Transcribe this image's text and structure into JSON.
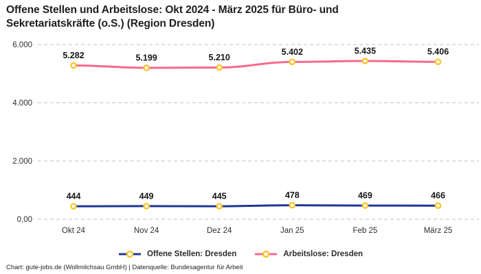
{
  "title": "Offene Stellen und Arbeitslose: Okt 2024 - März 2025 für Büro- und Sekretariatskräfte (o.S.) (Region Dresden)",
  "footer": "Chart: gute-jobs.de (Wollmilchsau GmbH) | Datenquelle: Bundesagentur für Arbeit",
  "chart_data": {
    "type": "line",
    "categories": [
      "Okt 24",
      "Nov 24",
      "Dez 24",
      "Jan 25",
      "Feb 25",
      "März 25"
    ],
    "series": [
      {
        "name": "Offene Stellen: Dresden",
        "values": [
          444,
          449,
          445,
          478,
          469,
          466
        ],
        "labels": [
          "444",
          "449",
          "445",
          "478",
          "469",
          "466"
        ],
        "color": "#1F3795"
      },
      {
        "name": "Arbeitslose: Dresden",
        "values": [
          5282,
          5199,
          5210,
          5402,
          5435,
          5406
        ],
        "labels": [
          "5.282",
          "5.199",
          "5.210",
          "5.402",
          "5.435",
          "5.406"
        ],
        "color": "#F6698C"
      }
    ],
    "y_ticks": [
      {
        "value": 0,
        "label": "0,00"
      },
      {
        "value": 2000,
        "label": "2.000"
      },
      {
        "value": 4000,
        "label": "4.000"
      },
      {
        "value": 6000,
        "label": "6.000"
      }
    ],
    "ylim": [
      0,
      6000
    ],
    "grid": "horizontal-dashed",
    "grid_color": "#CCCCCC",
    "marker_color": "#F9C52F",
    "marker_fill": "#FFFFFF",
    "legend_position": "bottom"
  }
}
